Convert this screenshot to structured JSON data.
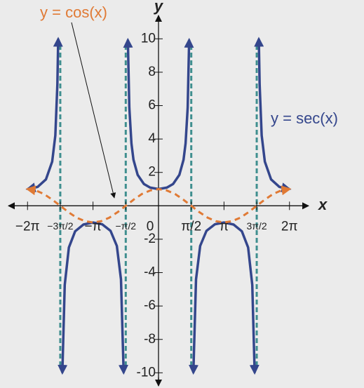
{
  "chart_data": {
    "type": "line",
    "x_label": "x",
    "y_label": "y",
    "xlim": [
      -7.2,
      7.2
    ],
    "ylim": [
      -10.7,
      11.4
    ],
    "xticks": [
      {
        "value": -6.283,
        "label": "−2π"
      },
      {
        "value": -4.712,
        "label": "−3π/2"
      },
      {
        "value": -3.142,
        "label": "−π"
      },
      {
        "value": -1.571,
        "label": "−π/2"
      },
      0,
      {
        "value": 1.571,
        "label": "π/2"
      },
      {
        "value": 3.142,
        "label": "π"
      },
      {
        "value": 4.712,
        "label": "3π/2"
      },
      {
        "value": 6.283,
        "label": "2π"
      }
    ],
    "yticks": [
      -10,
      -8,
      -6,
      -4,
      -2,
      2,
      4,
      6,
      8,
      10
    ],
    "asymptotes": {
      "x": [
        -4.712,
        -1.571,
        1.571,
        4.712
      ],
      "color": "#3f8f8f"
    },
    "series": [
      {
        "name": "y = sec(x)",
        "color": "#34468c",
        "x": [
          -6.28,
          -5.8,
          -5.4,
          -5.1,
          -4.95,
          -4.85,
          -4.812,
          null,
          -4.612,
          -4.5,
          -4.3,
          -4.0,
          -3.6,
          -3.14,
          -2.7,
          -2.3,
          -2.0,
          -1.8,
          -1.671,
          null,
          -1.47,
          -1.4,
          -1.3,
          -1.2,
          -1.0,
          -0.7,
          -0.4,
          0,
          0.4,
          0.7,
          1.0,
          1.2,
          1.3,
          1.4,
          1.47,
          null,
          1.671,
          1.8,
          2.0,
          2.3,
          2.7,
          3.14,
          3.6,
          4.0,
          4.3,
          4.5,
          4.612,
          null,
          4.812,
          4.85,
          4.95,
          5.1,
          5.4,
          5.8,
          6.28
        ],
        "values": [
          1,
          1.13,
          1.58,
          2.65,
          4.22,
          7.27,
          10,
          null,
          -10,
          -4.74,
          -2.5,
          -1.53,
          -1.12,
          -1,
          -1.11,
          -1.5,
          -2.4,
          -4.4,
          -10,
          null,
          9.94,
          5.88,
          3.74,
          2.76,
          1.85,
          1.31,
          1.09,
          1,
          1.09,
          1.31,
          1.85,
          2.76,
          3.74,
          5.88,
          9.94,
          null,
          -10,
          -4.4,
          -2.4,
          -1.5,
          -1.11,
          -1,
          -1.12,
          -1.53,
          -2.5,
          -4.74,
          -10,
          null,
          10,
          7.27,
          4.22,
          2.65,
          1.58,
          1.13,
          1
        ]
      },
      {
        "name": "y = cos(x)",
        "color": "#e07a35",
        "x": [
          -6.28,
          -5.89,
          -5.5,
          -5.11,
          -4.71,
          -4.32,
          -3.93,
          -3.53,
          -3.14,
          -2.75,
          -2.36,
          -1.96,
          -1.57,
          -1.18,
          -0.79,
          -0.39,
          0,
          0.39,
          0.79,
          1.18,
          1.57,
          1.96,
          2.36,
          2.75,
          3.14,
          3.53,
          3.93,
          4.32,
          4.71,
          5.11,
          5.5,
          5.89,
          6.28
        ],
        "values": [
          1,
          0.92,
          0.71,
          0.38,
          0,
          -0.38,
          -0.71,
          -0.92,
          -1,
          -0.92,
          -0.71,
          -0.38,
          0,
          0.38,
          0.71,
          0.92,
          1,
          0.92,
          0.71,
          0.38,
          0,
          -0.38,
          -0.71,
          -0.92,
          -1,
          -0.92,
          -0.71,
          -0.38,
          0,
          0.38,
          0.71,
          0.92,
          1
        ]
      }
    ]
  }
}
